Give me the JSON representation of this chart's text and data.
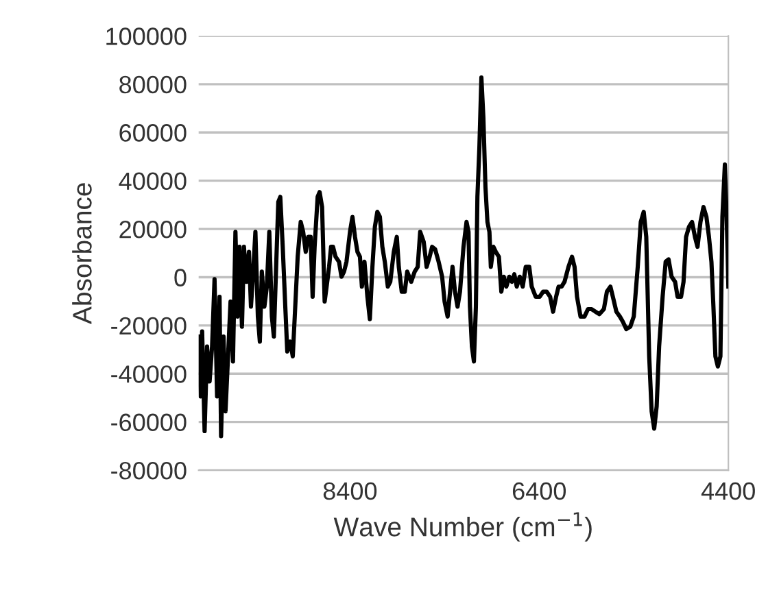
{
  "chart_data": {
    "type": "line",
    "xlabel": "Wave Number (cm$^{−1}$)",
    "ylabel": "Absorbance",
    "xlim": [
      10000,
      4400
    ],
    "xticks": [
      8400,
      6400,
      4400
    ],
    "ylim": [
      -80000,
      100000
    ],
    "yticks": [
      -80000,
      -60000,
      -40000,
      -20000,
      0,
      20000,
      40000,
      60000,
      80000,
      100000
    ],
    "grid": "y",
    "legend": false,
    "marker": "none",
    "line_style": "solid",
    "series": [
      {
        "color": "#000000",
        "x": [
          10000,
          9979,
          9963,
          9937,
          9911,
          9884,
          9858,
          9832,
          9805,
          9779,
          9763,
          9737,
          9716,
          9689,
          9663,
          9637,
          9611,
          9589,
          9568,
          9542,
          9521,
          9495,
          9468,
          9447,
          9426,
          9400,
          9374,
          9353,
          9332,
          9305,
          9279,
          9253,
          9226,
          9205,
          9179,
          9158,
          9137,
          9111,
          9084,
          9063,
          9032,
          9005,
          8984,
          8953,
          8921,
          8895,
          8868,
          8842,
          8816,
          8795,
          8774,
          8742,
          8721,
          8695,
          8668,
          8647,
          8621,
          8600,
          8579,
          8553,
          8516,
          8490,
          8463,
          8437,
          8400,
          8374,
          8347,
          8321,
          8295,
          8274,
          8247,
          8216,
          8190,
          8163,
          8137,
          8111,
          8084,
          8058,
          8032,
          8000,
          7974,
          7937,
          7905,
          7884,
          7853,
          7821,
          7795,
          7753,
          7716,
          7684,
          7658,
          7621,
          7590,
          7558,
          7532,
          7500,
          7463,
          7426,
          7400,
          7368,
          7342,
          7316,
          7290,
          7263,
          7237,
          7200,
          7168,
          7147,
          7132,
          7111,
          7090,
          7069,
          7053,
          7032,
          7011,
          6990,
          6968,
          6947,
          6926,
          6911,
          6884,
          6858,
          6826,
          6800,
          6774,
          6747,
          6716,
          6689,
          6663,
          6637,
          6605,
          6574,
          6542,
          6505,
          6479,
          6437,
          6395,
          6358,
          6321,
          6284,
          6253,
          6221,
          6195,
          6163,
          6132,
          6090,
          6053,
          6026,
          6000,
          5963,
          5921,
          5884,
          5847,
          5805,
          5763,
          5716,
          5684,
          5647,
          5621,
          5584,
          5547,
          5516,
          5479,
          5437,
          5400,
          5358,
          5326,
          5295,
          5268,
          5237,
          5211,
          5184,
          5158,
          5132,
          5095,
          5063,
          5032,
          5000,
          4963,
          4937,
          4900,
          4874,
          4847,
          4816,
          4784,
          4753,
          4726,
          4695,
          4663,
          4632,
          4605,
          4579,
          4558,
          4537,
          4511,
          4484,
          4463,
          4437,
          4418,
          4408,
          4400
        ],
        "values": [
          -24600,
          -49400,
          -22500,
          -63800,
          -28700,
          -43200,
          -28700,
          -800,
          -49400,
          -8100,
          -65900,
          -24600,
          -55600,
          -32800,
          -10100,
          -34900,
          18800,
          -16300,
          12600,
          -20500,
          12600,
          -1900,
          10500,
          -12200,
          200,
          18800,
          -16300,
          -26700,
          2300,
          -12200,
          -3900,
          18800,
          -16300,
          -24600,
          6400,
          31200,
          33300,
          12600,
          -12200,
          -30800,
          -26700,
          -32800,
          -16300,
          8500,
          22900,
          18800,
          10500,
          16700,
          16700,
          -8100,
          12600,
          33300,
          35300,
          29100,
          -10100,
          -3900,
          4300,
          12600,
          12600,
          8500,
          6400,
          200,
          2300,
          6400,
          18800,
          25000,
          16700,
          10500,
          8500,
          -3900,
          6400,
          -8100,
          -17400,
          4300,
          20900,
          27100,
          25000,
          12600,
          6400,
          -3900,
          -1900,
          10500,
          16700,
          4300,
          -6000,
          -6000,
          2300,
          -1900,
          2300,
          4300,
          18800,
          14700,
          4300,
          8500,
          12600,
          11600,
          6400,
          200,
          -10100,
          -16300,
          -6000,
          4300,
          -6000,
          -12200,
          -6000,
          12600,
          22900,
          18800,
          -12200,
          -28700,
          -34900,
          -12200,
          33300,
          53900,
          82800,
          66300,
          37400,
          22900,
          18800,
          4300,
          12600,
          10500,
          8500,
          -6000,
          200,
          -3900,
          200,
          -1900,
          1200,
          -3900,
          200,
          -3900,
          4300,
          4300,
          -3900,
          -8100,
          -8100,
          -6000,
          -6000,
          -8100,
          -14300,
          -8100,
          -3900,
          -3900,
          -1900,
          4300,
          8500,
          4300,
          -8100,
          -16300,
          -16300,
          -13200,
          -13200,
          -14300,
          -15300,
          -13200,
          -6000,
          -3900,
          -8100,
          -14300,
          -16300,
          -18400,
          -21500,
          -20500,
          -16300,
          4300,
          22900,
          27100,
          16700,
          -32800,
          -55600,
          -62800,
          -53500,
          -28700,
          -8100,
          6400,
          7400,
          200,
          -1900,
          -8100,
          -8100,
          -1900,
          16700,
          20900,
          22900,
          16700,
          12600,
          22900,
          29100,
          25000,
          16700,
          6400,
          -12200,
          -32800,
          -37000,
          -32800,
          25000,
          46700,
          25000,
          10500,
          -3900
        ]
      }
    ]
  }
}
